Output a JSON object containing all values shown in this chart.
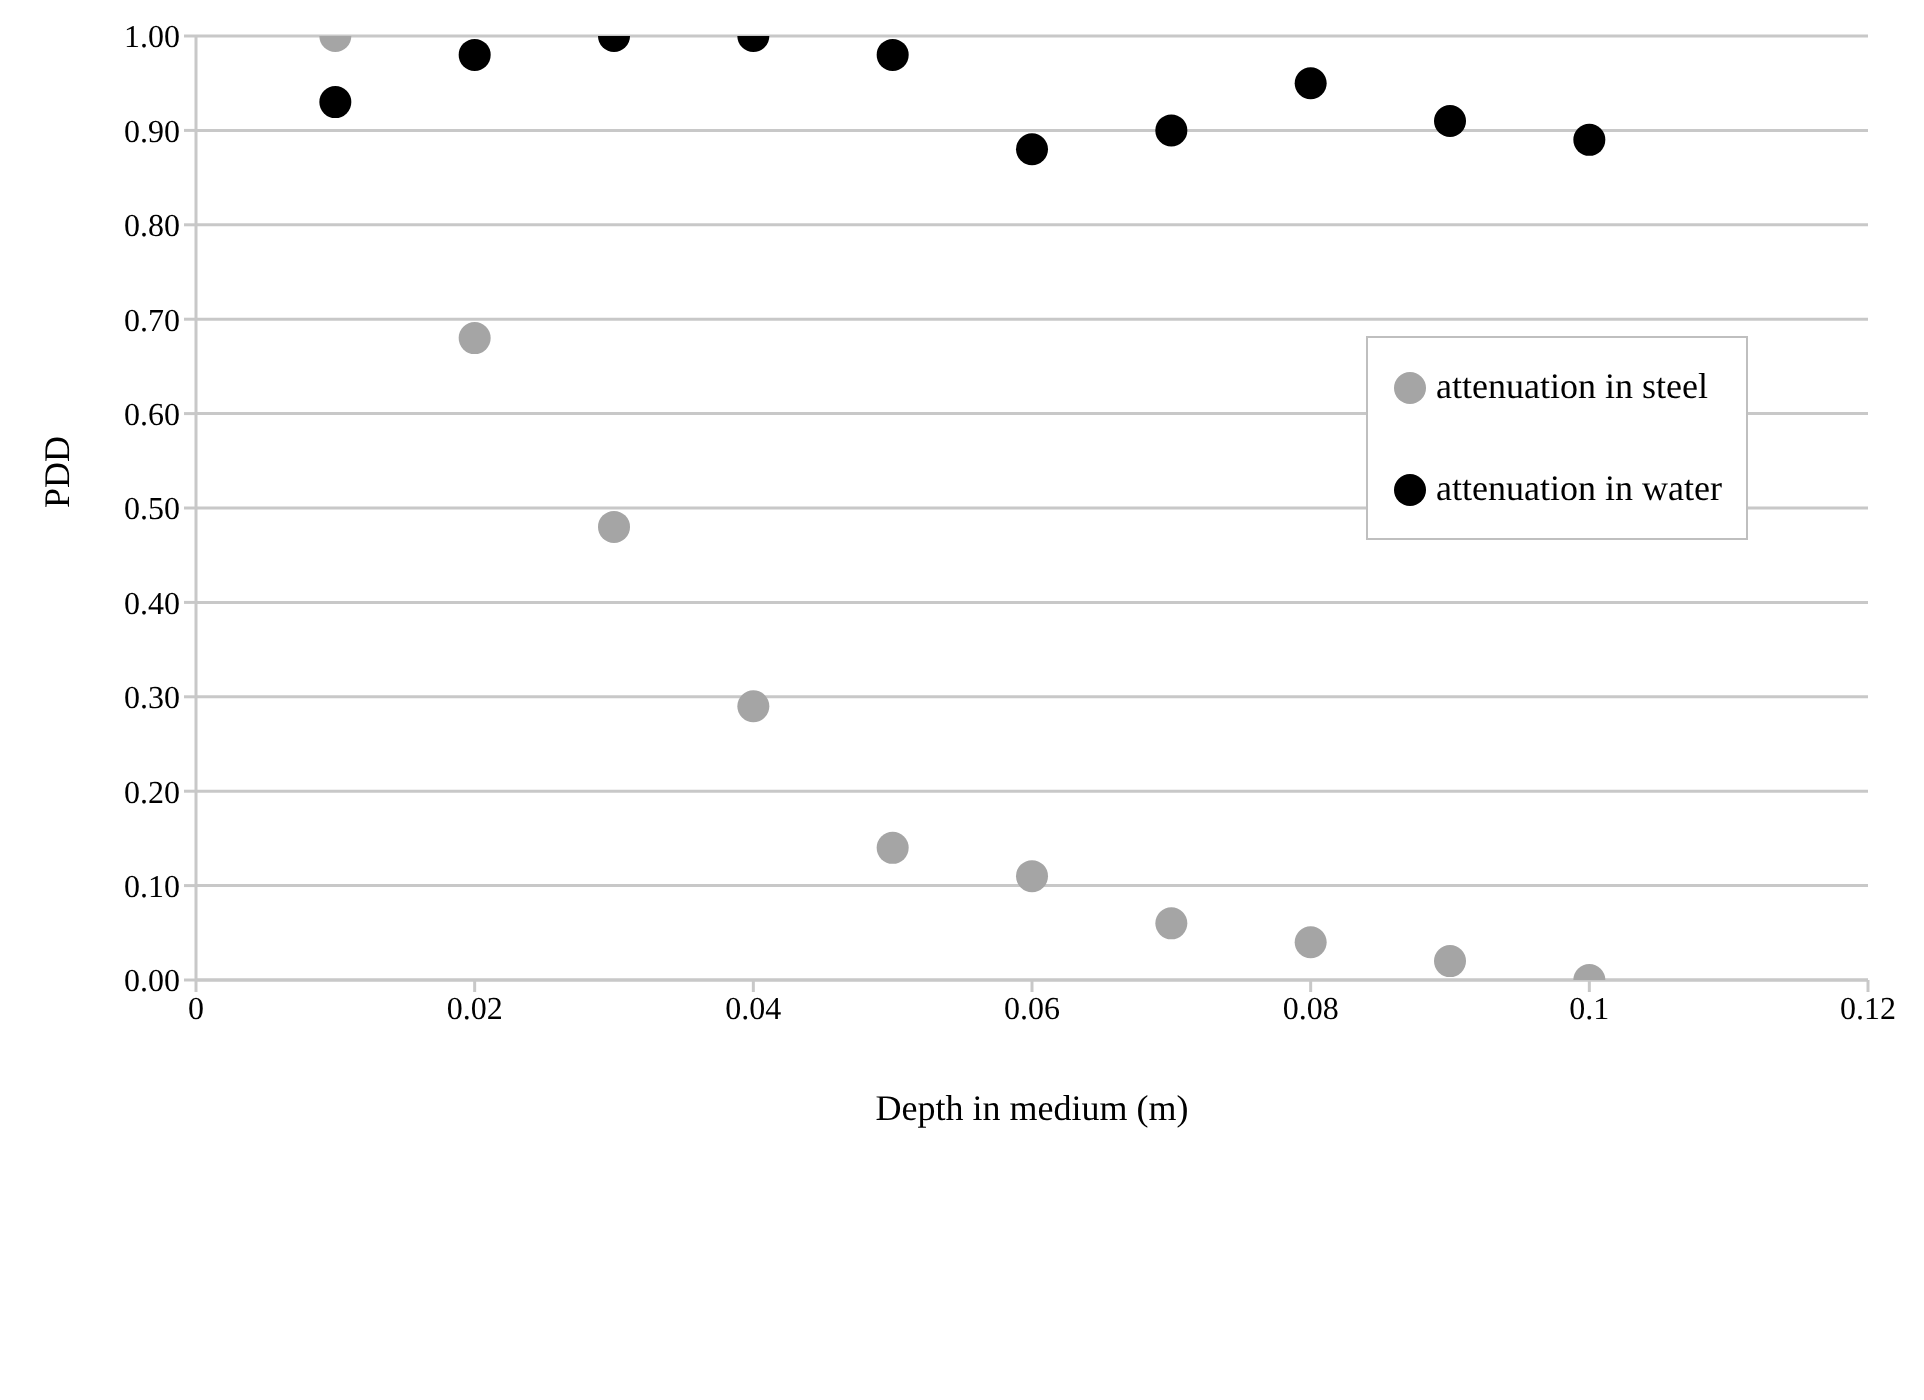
{
  "chart_data": {
    "type": "scatter",
    "xlabel": "Depth in medium (m)",
    "ylabel": "PDD",
    "x": [
      0.01,
      0.02,
      0.03,
      0.04,
      0.05,
      0.06,
      0.07,
      0.08,
      0.09,
      0.1
    ],
    "series": [
      {
        "name": "attenuation in steel",
        "color": "#a5a5a5",
        "values": [
          1.0,
          0.68,
          0.48,
          0.29,
          0.14,
          0.11,
          0.06,
          0.04,
          0.02,
          0.0
        ]
      },
      {
        "name": "attenuation in water",
        "color": "#000000",
        "values": [
          0.93,
          0.98,
          1.0,
          1.0,
          0.98,
          0.88,
          0.9,
          0.95,
          0.91,
          0.89
        ]
      }
    ],
    "xlim": [
      0,
      0.12
    ],
    "xticks": [
      0,
      0.02,
      0.04,
      0.06,
      0.08,
      0.1,
      0.12
    ],
    "ylim": [
      0,
      1
    ],
    "yticks": [
      {
        "value": 0,
        "label": "0.00"
      },
      {
        "value": 0.1,
        "label": "0.10"
      },
      {
        "value": 0.2,
        "label": "0.20"
      },
      {
        "value": 0.3,
        "label": "0.30"
      },
      {
        "value": 0.4,
        "label": "0.40"
      },
      {
        "value": 0.5,
        "label": "0.50"
      },
      {
        "value": 0.6,
        "label": "0.60"
      },
      {
        "value": 0.7,
        "label": "0.70"
      },
      {
        "value": 0.8,
        "label": "0.80"
      },
      {
        "value": 0.9,
        "label": "0.90"
      },
      {
        "value": 1,
        "label": "1.00"
      }
    ],
    "grid": "y",
    "legend": "right",
    "marker": "circle"
  }
}
